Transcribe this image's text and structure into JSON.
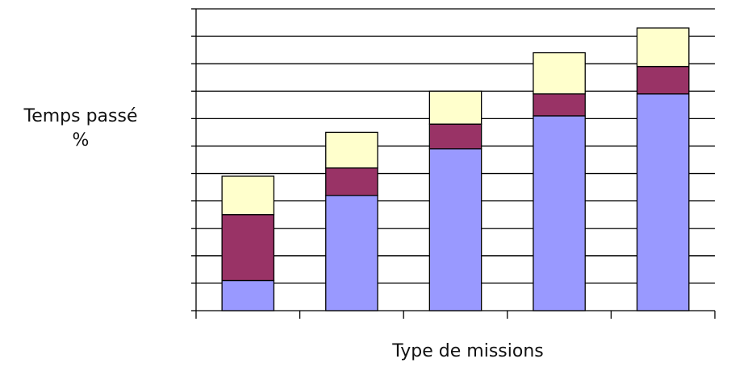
{
  "chart_data": {
    "type": "bar",
    "stacked": true,
    "title": "",
    "xlabel": "Type de missions",
    "ylabel_lines": [
      "Temps passé",
      "%"
    ],
    "ylim": [
      0,
      11
    ],
    "grid": true,
    "categories": [
      "",
      "",
      "",
      "",
      ""
    ],
    "series": [
      {
        "values": [
          1.1,
          4.2,
          5.9,
          7.1,
          7.9
        ],
        "color": "#9999FF"
      },
      {
        "values": [
          2.4,
          1.0,
          0.9,
          0.8,
          1.0
        ],
        "color": "#993366"
      },
      {
        "values": [
          1.4,
          1.3,
          1.2,
          1.5,
          1.4
        ],
        "color": "#FFFFCC"
      }
    ]
  }
}
